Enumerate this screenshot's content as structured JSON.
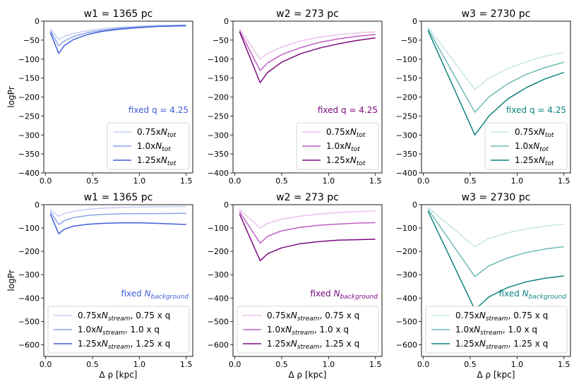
{
  "chart_data": [
    {
      "type": "line",
      "title": "w1 = 1365 pc",
      "xlabel": "",
      "ylabel": "logPr",
      "xlim": [
        -0.02,
        1.57
      ],
      "ylim": [
        -400,
        0
      ],
      "xticks": [
        "0.0",
        "0.5",
        "1.0",
        "1.5"
      ],
      "yticks": [
        "0",
        "−50",
        "−100",
        "−150",
        "−200",
        "−250",
        "−300",
        "−350",
        "−400"
      ],
      "annotation": "fixed q = 4.25",
      "annotation_color": "#3f5fd8",
      "legend_position": "lower right",
      "series": [
        {
          "name": "0.75xN_tot",
          "label_main": "0.75x",
          "label_sym": "N",
          "label_sub": "tot",
          "label_tail": "",
          "color": "#c4d0f2",
          "x": [
            0.05,
            0.14,
            0.2,
            0.3,
            0.45,
            0.6,
            0.8,
            1.0,
            1.2,
            1.5
          ],
          "y": [
            -20,
            -48,
            -40,
            -32,
            -25,
            -20,
            -16,
            -13,
            -11,
            -10
          ]
        },
        {
          "name": "1.0xN_tot",
          "label_main": "1.0x",
          "label_sym": "N",
          "label_sub": "tot",
          "label_tail": "",
          "color": "#8aa4ea",
          "x": [
            0.05,
            0.14,
            0.2,
            0.3,
            0.45,
            0.6,
            0.8,
            1.0,
            1.2,
            1.5
          ],
          "y": [
            -25,
            -65,
            -52,
            -40,
            -30,
            -24,
            -18,
            -15,
            -13,
            -11
          ]
        },
        {
          "name": "1.25xN_tot",
          "label_main": "1.25x",
          "label_sym": "N",
          "label_sub": "tot",
          "label_tail": "",
          "color": "#3f5fd8",
          "x": [
            0.05,
            0.14,
            0.2,
            0.3,
            0.45,
            0.6,
            0.8,
            1.0,
            1.2,
            1.5
          ],
          "y": [
            -30,
            -85,
            -64,
            -48,
            -35,
            -27,
            -21,
            -17,
            -14,
            -12
          ]
        }
      ]
    },
    {
      "type": "line",
      "title": "w2 = 273 pc",
      "xlabel": "",
      "ylabel": "",
      "xlim": [
        -0.02,
        1.57
      ],
      "ylim": [
        -400,
        0
      ],
      "xticks": [
        "0.0",
        "0.5",
        "1.0",
        "1.5"
      ],
      "yticks": [
        "0",
        "−50",
        "−100",
        "−150",
        "−200",
        "−250",
        "−300",
        "−350",
        "−400"
      ],
      "annotation": "fixed q = 4.25",
      "annotation_color": "#7b0a80",
      "legend_position": "lower right",
      "series": [
        {
          "name": "0.75xN_tot",
          "label_main": "0.75x",
          "label_sym": "N",
          "label_sub": "tot",
          "label_tail": "",
          "color": "#ebc2ec",
          "x": [
            0.05,
            0.27,
            0.35,
            0.5,
            0.7,
            0.9,
            1.1,
            1.3,
            1.5
          ],
          "y": [
            -20,
            -100,
            -85,
            -68,
            -52,
            -42,
            -36,
            -31,
            -28
          ]
        },
        {
          "name": "1.0xN_tot",
          "label_main": "1.0x",
          "label_sym": "N",
          "label_sub": "tot",
          "label_tail": "",
          "color": "#c160c4",
          "x": [
            0.05,
            0.27,
            0.35,
            0.5,
            0.7,
            0.9,
            1.1,
            1.3,
            1.5
          ],
          "y": [
            -25,
            -130,
            -110,
            -88,
            -70,
            -56,
            -47,
            -40,
            -35
          ]
        },
        {
          "name": "1.25xN_tot",
          "label_main": "1.25x",
          "label_sym": "N",
          "label_sub": "tot",
          "label_tail": "",
          "color": "#7b0a80",
          "x": [
            0.05,
            0.27,
            0.35,
            0.5,
            0.7,
            0.9,
            1.1,
            1.3,
            1.5
          ],
          "y": [
            -28,
            -162,
            -135,
            -108,
            -86,
            -71,
            -60,
            -51,
            -44
          ]
        }
      ]
    },
    {
      "type": "line",
      "title": "w3 = 2730 pc",
      "xlabel": "",
      "ylabel": "",
      "xlim": [
        -0.02,
        1.57
      ],
      "ylim": [
        -400,
        0
      ],
      "xticks": [
        "0.0",
        "0.5",
        "1.0",
        "1.5"
      ],
      "yticks": [
        "0",
        "−50",
        "−100",
        "−150",
        "−200",
        "−250",
        "−300",
        "−350",
        "−400"
      ],
      "annotation": "fixed q = 4.25",
      "annotation_color": "#0e8480",
      "legend_position": "lower right",
      "series": [
        {
          "name": "0.75xN_tot",
          "label_main": "0.75x",
          "label_sym": "N",
          "label_sub": "tot",
          "label_tail": "",
          "color": "#c8e6e5",
          "x": [
            0.05,
            0.55,
            0.7,
            0.9,
            1.1,
            1.3,
            1.5
          ],
          "y": [
            -15,
            -180,
            -150,
            -125,
            -107,
            -92,
            -82
          ]
        },
        {
          "name": "1.0xN_tot",
          "label_main": "1.0x",
          "label_sym": "N",
          "label_sub": "tot",
          "label_tail": "",
          "color": "#6dbab6",
          "x": [
            0.05,
            0.55,
            0.7,
            0.9,
            1.1,
            1.3,
            1.5
          ],
          "y": [
            -20,
            -240,
            -200,
            -165,
            -140,
            -122,
            -108
          ]
        },
        {
          "name": "1.25xN_tot",
          "label_main": "1.25x",
          "label_sym": "N",
          "label_sub": "tot",
          "label_tail": "",
          "color": "#0e8480",
          "x": [
            0.05,
            0.55,
            0.7,
            0.9,
            1.1,
            1.3,
            1.5
          ],
          "y": [
            -25,
            -300,
            -250,
            -205,
            -175,
            -152,
            -135
          ]
        }
      ]
    },
    {
      "type": "line",
      "title": "w1 = 1365 pc",
      "xlabel": "Δ ρ [kpc]",
      "ylabel": "logPr",
      "xlim": [
        -0.02,
        1.57
      ],
      "ylim": [
        -650,
        0
      ],
      "xticks": [
        "0.0",
        "0.5",
        "1.0",
        "1.5"
      ],
      "yticks": [
        "0",
        "−100",
        "−200",
        "−300",
        "−400",
        "−500",
        "−600"
      ],
      "annotation": "fixed N_background",
      "annotation_main": "fixed ",
      "annotation_sym": "N",
      "annotation_sub": "background",
      "annotation_color": "#3f5fd8",
      "legend_position": "lower right",
      "series": [
        {
          "name": "0.75xN_stream, 0.75 x q",
          "label_main": "0.75x",
          "label_sym": "N",
          "label_sub": "stream",
          "label_tail": ", 0.75 x q",
          "color": "#c4d0f2",
          "x": [
            0.05,
            0.14,
            0.2,
            0.3,
            0.45,
            0.6,
            0.8,
            1.0,
            1.2,
            1.5
          ],
          "y": [
            -22,
            -50,
            -38,
            -28,
            -20,
            -15,
            -12,
            -10,
            -9,
            -8
          ]
        },
        {
          "name": "1.0xN_stream, 1.0 x q",
          "label_main": "1.0x",
          "label_sym": "N",
          "label_sub": "stream",
          "label_tail": ", 1.0 x q",
          "color": "#8aa4ea",
          "x": [
            0.05,
            0.14,
            0.2,
            0.3,
            0.45,
            0.6,
            0.8,
            1.0,
            1.2,
            1.5
          ],
          "y": [
            -30,
            -85,
            -68,
            -55,
            -46,
            -42,
            -39,
            -38,
            -38,
            -37
          ]
        },
        {
          "name": "1.25xN_stream, 1.25 x q",
          "label_main": "1.25x",
          "label_sym": "N",
          "label_sub": "stream",
          "label_tail": ", 1.25 x q",
          "color": "#3f5fd8",
          "x": [
            0.05,
            0.14,
            0.2,
            0.3,
            0.45,
            0.6,
            0.8,
            1.0,
            1.2,
            1.5
          ],
          "y": [
            -40,
            -125,
            -105,
            -92,
            -84,
            -80,
            -78,
            -78,
            -80,
            -85
          ]
        }
      ]
    },
    {
      "type": "line",
      "title": "w2 = 273 pc",
      "xlabel": "Δ ρ [kpc]",
      "ylabel": "",
      "xlim": [
        -0.02,
        1.57
      ],
      "ylim": [
        -650,
        0
      ],
      "xticks": [
        "0.0",
        "0.5",
        "1.0",
        "1.5"
      ],
      "yticks": [
        "0",
        "−100",
        "−200",
        "−300",
        "−400",
        "−500",
        "−600"
      ],
      "annotation": "fixed N_background",
      "annotation_main": "fixed ",
      "annotation_sym": "N",
      "annotation_sub": "background",
      "annotation_color": "#7b0a80",
      "legend_position": "lower right",
      "series": [
        {
          "name": "0.75xN_stream, 0.75 x q",
          "label_main": "0.75x",
          "label_sym": "N",
          "label_sub": "stream",
          "label_tail": ", 0.75 x q",
          "color": "#ebc2ec",
          "x": [
            0.05,
            0.27,
            0.35,
            0.5,
            0.7,
            0.9,
            1.1,
            1.3,
            1.5
          ],
          "y": [
            -20,
            -100,
            -80,
            -62,
            -49,
            -40,
            -34,
            -30,
            -27
          ]
        },
        {
          "name": "1.0xN_stream, 1.0 x q",
          "label_main": "1.0x",
          "label_sym": "N",
          "label_sub": "stream",
          "label_tail": ", 1.0 x q",
          "color": "#c160c4",
          "x": [
            0.05,
            0.27,
            0.35,
            0.5,
            0.7,
            0.9,
            1.1,
            1.3,
            1.5
          ],
          "y": [
            -30,
            -165,
            -135,
            -112,
            -97,
            -88,
            -83,
            -79,
            -77
          ]
        },
        {
          "name": "1.25xN_stream, 1.25 x q",
          "label_main": "1.25x",
          "label_sym": "N",
          "label_sub": "stream",
          "label_tail": ", 1.25 x q",
          "color": "#7b0a80",
          "x": [
            0.05,
            0.27,
            0.35,
            0.5,
            0.7,
            0.9,
            1.1,
            1.3,
            1.5
          ],
          "y": [
            -40,
            -240,
            -210,
            -185,
            -167,
            -158,
            -152,
            -150,
            -148
          ]
        }
      ]
    },
    {
      "type": "line",
      "title": "w3 = 2730 pc",
      "xlabel": "Δ ρ [kpc]",
      "ylabel": "",
      "xlim": [
        -0.02,
        1.57
      ],
      "ylim": [
        -650,
        0
      ],
      "xticks": [
        "0.0",
        "0.5",
        "1.0",
        "1.5"
      ],
      "yticks": [
        "0",
        "−100",
        "−200",
        "−300",
        "−400",
        "−500",
        "−600"
      ],
      "annotation": "fixed N_background",
      "annotation_main": "fixed ",
      "annotation_sym": "N",
      "annotation_sub": "background",
      "annotation_color": "#0e8480",
      "legend_position": "lower right",
      "series": [
        {
          "name": "0.75xN_stream, 0.75 x q",
          "label_main": "0.75x",
          "label_sym": "N",
          "label_sub": "stream",
          "label_tail": ", 0.75 x q",
          "color": "#c8e6e5",
          "x": [
            0.05,
            0.55,
            0.7,
            0.9,
            1.1,
            1.3,
            1.5
          ],
          "y": [
            -12,
            -180,
            -145,
            -120,
            -103,
            -92,
            -83
          ]
        },
        {
          "name": "1.0xN_stream, 1.0 x q",
          "label_main": "1.0x",
          "label_sym": "N",
          "label_sub": "stream",
          "label_tail": ", 1.0 x q",
          "color": "#6dbab6",
          "x": [
            0.05,
            0.55,
            0.7,
            0.9,
            1.1,
            1.3,
            1.5
          ],
          "y": [
            -20,
            -308,
            -262,
            -228,
            -205,
            -190,
            -180
          ]
        },
        {
          "name": "1.25xN_stream, 1.25 x q",
          "label_main": "1.25x",
          "label_sym": "N",
          "label_sub": "stream",
          "label_tail": ", 1.25 x q",
          "color": "#0e8480",
          "x": [
            0.05,
            0.55,
            0.7,
            0.9,
            1.1,
            1.3,
            1.5
          ],
          "y": [
            -28,
            -450,
            -395,
            -355,
            -330,
            -315,
            -305
          ]
        }
      ]
    }
  ]
}
